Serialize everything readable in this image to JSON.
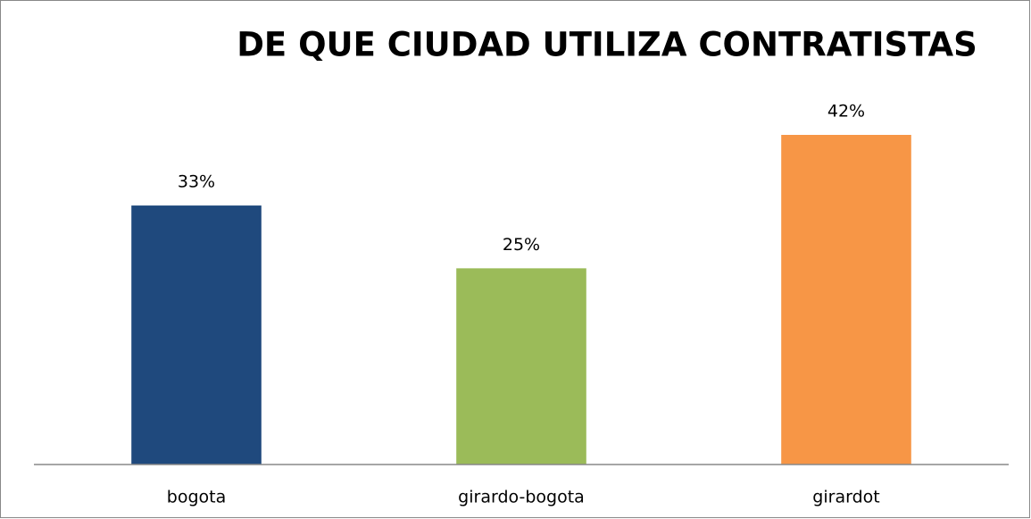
{
  "chart_data": {
    "type": "bar",
    "title": "DE QUE CIUDAD UTILIZA CONTRATISTAS",
    "categories": [
      "bogota",
      "girardo-bogota",
      "girardot"
    ],
    "values": [
      33,
      25,
      42
    ],
    "value_labels": [
      "33%",
      "25%",
      "42%"
    ],
    "colors": [
      "#1f497d",
      "#9bbb59",
      "#f79646"
    ]
  }
}
